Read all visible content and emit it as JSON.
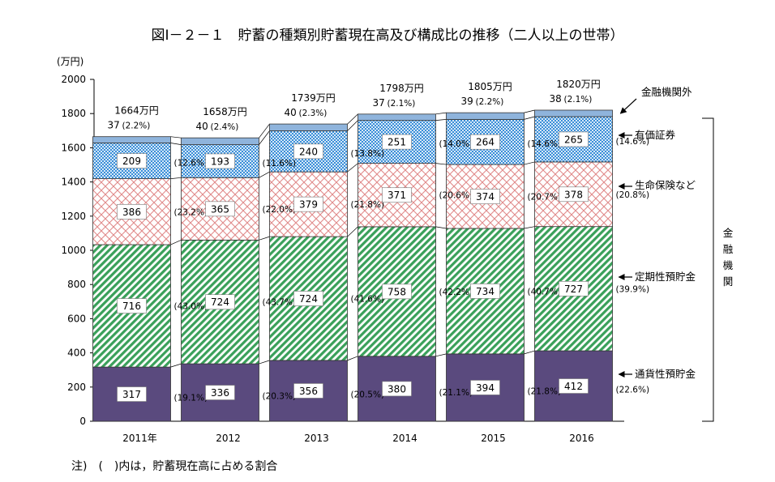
{
  "title": "図Ⅰ－２－１　貯蓄の種類別貯蓄現在高及び構成比の推移（二人以上の世帯）",
  "ylabel": "(万円)",
  "note": "注)　(　)内は，貯蓄現在高に占める割合",
  "bracket_label": "金融機関",
  "colors": {
    "tsuuka": "#5a4a7e",
    "teiki": "#3aa05a",
    "seimei": "#e08a8a",
    "yuuka": "#3a8ed8",
    "gai": "#8fb4dc"
  },
  "chart_data": {
    "type": "bar",
    "stacked": true,
    "categories": [
      "2011年",
      "2012",
      "2013",
      "2014",
      "2015",
      "2016"
    ],
    "ylim": [
      0,
      2000
    ],
    "yticks": [
      "0",
      "200",
      "400",
      "600",
      "800",
      "1000",
      "1200",
      "1400",
      "1600",
      "1800",
      "2000"
    ],
    "totals": [
      "1664万円",
      "1658万円",
      "1739万円",
      "1798万円",
      "1805万円",
      "1820万円"
    ],
    "series": [
      {
        "name": "通貨性預貯金",
        "key": "tsuuka",
        "values": [
          317,
          336,
          356,
          380,
          394,
          412
        ],
        "value_labels": [
          "317",
          "336",
          "356",
          "380",
          "394",
          "412"
        ],
        "pct": [
          "(19.1%)",
          "(20.3%)",
          "(20.5%)",
          "(21.1%)",
          "(21.8%)",
          "(22.6%)"
        ]
      },
      {
        "name": "定期性預貯金",
        "key": "teiki",
        "values": [
          716,
          724,
          724,
          758,
          734,
          727
        ],
        "value_labels": [
          "716",
          "724",
          "724",
          "758",
          "734",
          "727"
        ],
        "pct": [
          "(43.0%)",
          "(43.7%)",
          "(41.6%)",
          "(42.2%)",
          "(40.7%)",
          "(39.9%)"
        ]
      },
      {
        "name": "生命保険など",
        "key": "seimei",
        "values": [
          386,
          365,
          379,
          371,
          374,
          378
        ],
        "value_labels": [
          "386",
          "365",
          "379",
          "371",
          "374",
          "378"
        ],
        "pct": [
          "(23.2%)",
          "(22.0%)",
          "(21.8%)",
          "(20.6%)",
          "(20.7%)",
          "(20.8%)"
        ]
      },
      {
        "name": "有価証券",
        "key": "yuuka",
        "values": [
          209,
          193,
          240,
          251,
          264,
          265
        ],
        "value_labels": [
          "209",
          "193",
          "240",
          "251",
          "264",
          "265"
        ],
        "pct": [
          "(12.6%)",
          "(11.6%)",
          "(13.8%)",
          "(14.0%)",
          "(14.6%)",
          "(14.6%)"
        ]
      },
      {
        "name": "金融機関外",
        "key": "gai",
        "values": [
          37,
          40,
          40,
          37,
          39,
          38
        ],
        "value_labels": [
          "37",
          "40",
          "40",
          "37",
          "39",
          "38"
        ],
        "pct": [
          "(2.2%)",
          "(2.4%)",
          "(2.3%)",
          "(2.1%)",
          "(2.2%)",
          "(2.1%)"
        ]
      }
    ]
  }
}
